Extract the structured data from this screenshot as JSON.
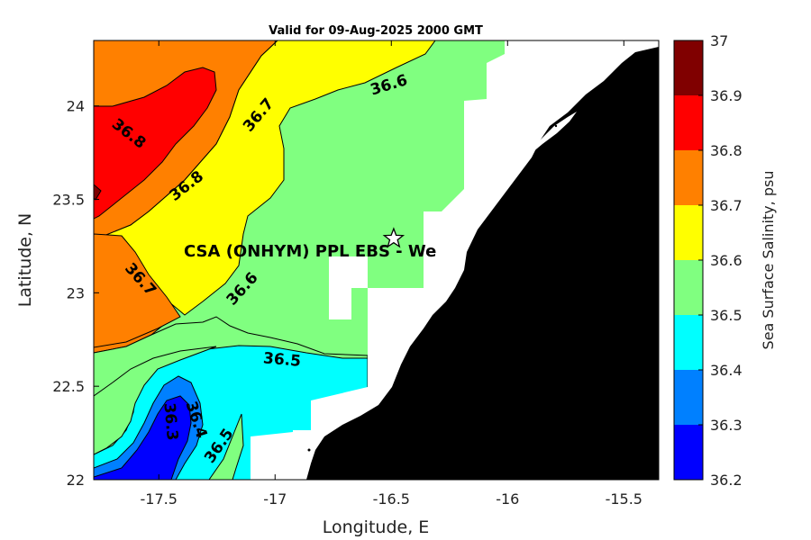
{
  "chart_data": {
    "type": "heatmap",
    "subtype": "filled-contour-map",
    "title": "Valid for 09-Aug-2025 2000 GMT",
    "xlabel": "Longitude, E",
    "ylabel": "Latitude, N",
    "xlim": [
      -17.78,
      -15.35
    ],
    "ylim": [
      22.0,
      24.35
    ],
    "x_ticks": [
      -17.5,
      -17,
      -16.5,
      -16,
      -15.5
    ],
    "x_tick_labels": [
      "-17.5",
      "-17",
      "-16.5",
      "-16",
      "-15.5"
    ],
    "y_ticks": [
      22,
      22.5,
      23,
      23.5,
      24
    ],
    "y_tick_labels": [
      "22",
      "22.5",
      "23",
      "23.5",
      "24"
    ],
    "grid": false,
    "colorbar": {
      "label": "Sea Surface Salinity, psu",
      "levels": [
        36.2,
        36.3,
        36.4,
        36.5,
        36.6,
        36.7,
        36.8,
        36.9,
        37.0
      ],
      "tick_labels": [
        "36.2",
        "36.3",
        "36.4",
        "36.5",
        "36.6",
        "36.7",
        "36.8",
        "36.9",
        "37"
      ],
      "colors": [
        "#0000ff",
        "#0080ff",
        "#00ffff",
        "#80ff80",
        "#ffff00",
        "#ff8000",
        "#ff0000",
        "#800000"
      ]
    },
    "contour_labels": [
      {
        "text": "36.6",
        "lon": -16.51,
        "lat": 24.11,
        "angle": -17
      },
      {
        "text": "36.7",
        "lon": -17.07,
        "lat": 23.95,
        "angle": -50
      },
      {
        "text": "36.8",
        "lon": -17.63,
        "lat": 23.85,
        "angle": 38
      },
      {
        "text": "36.8",
        "lon": -17.38,
        "lat": 23.57,
        "angle": -38
      },
      {
        "text": "36.7",
        "lon": -17.58,
        "lat": 23.07,
        "angle": 48
      },
      {
        "text": "36.6",
        "lon": -17.14,
        "lat": 23.02,
        "angle": -48
      },
      {
        "text": "36.5",
        "lon": -16.97,
        "lat": 22.64,
        "angle": 5
      },
      {
        "text": "36.4",
        "lon": -17.34,
        "lat": 22.32,
        "angle": 72
      },
      {
        "text": "36.3",
        "lon": -17.45,
        "lat": 22.31,
        "angle": 85
      },
      {
        "text": "36.5",
        "lon": -17.24,
        "lat": 22.18,
        "angle": -55
      }
    ],
    "annotation": {
      "text": "CSA (ONHYM) PPL EBS  - We",
      "marker": "star",
      "lon": -16.49,
      "lat": 23.29
    },
    "land_color": "#000000",
    "nodata_color": "#ffffff"
  }
}
